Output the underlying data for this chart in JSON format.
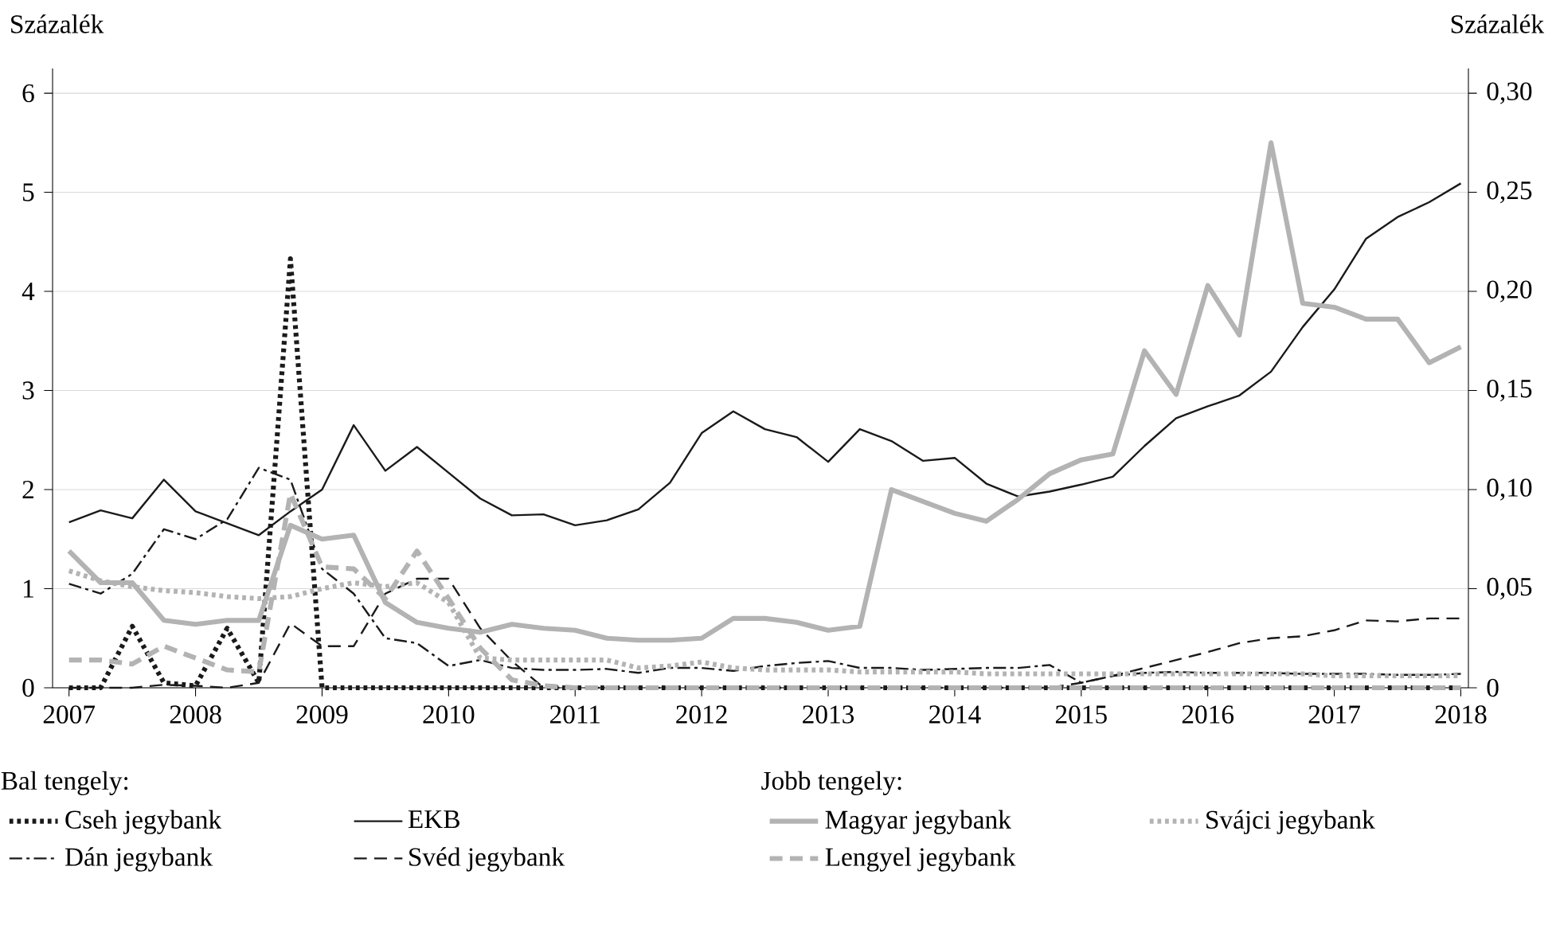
{
  "chart_data": {
    "type": "line",
    "ylabel": "Százalék",
    "y2label": "Százalék",
    "annotations": [
      "Bal tengely:",
      "Jobb tengely:"
    ],
    "x": [
      2007,
      2007.25,
      2007.5,
      2007.75,
      2008,
      2008.25,
      2008.5,
      2008.75,
      2009,
      2009.25,
      2009.5,
      2009.75,
      2010,
      2010.25,
      2010.5,
      2010.75,
      2011,
      2011.25,
      2011.5,
      2011.75,
      2012,
      2012.25,
      2012.5,
      2012.75,
      2013,
      2013.25,
      2013.5,
      2013.75,
      2014,
      2014.25,
      2014.5,
      2014.75,
      2015,
      2015.25,
      2015.5,
      2015.75,
      2016,
      2016.25,
      2016.5,
      2016.75,
      2017,
      2017.25,
      2017.5,
      2017.75,
      2018
    ],
    "xlim": [
      2006.87,
      2018.06
    ],
    "xticks": [
      2007,
      2008,
      2009,
      2010,
      2011,
      2012,
      2013,
      2014,
      2015,
      2016,
      2017,
      2018
    ],
    "ylim": [
      0,
      6.25
    ],
    "yticks": [
      0,
      1,
      2,
      3,
      4,
      5,
      6
    ],
    "y2lim": [
      0,
      0.3125
    ],
    "y2ticks": [
      0,
      {
        "value": 0.05,
        "label": "0,05"
      },
      {
        "value": 0.1,
        "label": "0,10"
      },
      {
        "value": 0.15,
        "label": "0,15"
      },
      {
        "value": 0.2,
        "label": "0,20"
      },
      {
        "value": 0.25,
        "label": "0,25"
      },
      {
        "value": 0.3,
        "label": "0,30"
      }
    ],
    "grid": "y",
    "legend": "bottom",
    "series": [
      {
        "name": "Cseh jegybank",
        "color": "#1a1a1a",
        "line_style": "dotted",
        "values": [
          0,
          0,
          0.62,
          0.05,
          0.02,
          0.6,
          0.05,
          4.33,
          0,
          0,
          0,
          0,
          0,
          0,
          0,
          0,
          0,
          0,
          0,
          0,
          0,
          0,
          0,
          0,
          0,
          0,
          0,
          0,
          0,
          0,
          0,
          0,
          0,
          0,
          0,
          0,
          0,
          0,
          0,
          0,
          0,
          0,
          0,
          0,
          0
        ]
      },
      {
        "name": "EKB",
        "color": "#1a1a1a",
        "line_style": "solid",
        "values": [
          1.67,
          1.79,
          1.71,
          2.1,
          1.78,
          1.66,
          1.54,
          1.78,
          2.0,
          2.65,
          2.19,
          2.43,
          2.17,
          1.91,
          1.74,
          1.75,
          1.64,
          1.69,
          1.8,
          2.07,
          2.57,
          2.79,
          2.61,
          2.53,
          2.28,
          2.61,
          2.49,
          2.29,
          2.32,
          2.06,
          1.93,
          1.98,
          2.05,
          2.13,
          2.44,
          2.72,
          2.84,
          2.95,
          3.19,
          3.64,
          4.02,
          4.53,
          4.75,
          4.9,
          5.09
        ]
      },
      {
        "name": "Dán jegybank",
        "color": "#1a1a1a",
        "line_style": "dashdot",
        "values": [
          1.05,
          0.95,
          1.15,
          1.6,
          1.5,
          1.7,
          2.22,
          2.1,
          1.2,
          0.95,
          0.5,
          0.45,
          0.22,
          0.28,
          0.2,
          0.18,
          0.18,
          0.19,
          0.15,
          0.2,
          0.2,
          0.17,
          0.22,
          0.25,
          0.27,
          0.2,
          0.2,
          0.18,
          0.19,
          0.2,
          0.2,
          0.23,
          0.05,
          0.12,
          0.15,
          0.16,
          0.15,
          0.15,
          0.15,
          0.14,
          0.14,
          0.14,
          0.13,
          0.13,
          0.14
        ]
      },
      {
        "name": "Svéd jegybank",
        "color": "#1a1a1a",
        "line_style": "dashed",
        "values": [
          0,
          0,
          0,
          0.03,
          0.02,
          0,
          0.05,
          0.65,
          0.42,
          0.42,
          0.95,
          1.1,
          1.1,
          0.6,
          0.27,
          0,
          0,
          0,
          0,
          0,
          0,
          0,
          0,
          0,
          0,
          0,
          0,
          0,
          0,
          0,
          0,
          0,
          0.05,
          0.12,
          0.2,
          0.28,
          0.36,
          0.45,
          0.5,
          0.52,
          0.58,
          0.68,
          0.67,
          0.7,
          0.7
        ]
      },
      {
        "name": "Magyar jegybank",
        "color": "#b3b3b3",
        "line_style": "solid",
        "axis": "y2",
        "values": [
          0.069,
          0.053,
          0.053,
          0.034,
          0.032,
          0.034,
          0.034,
          0.082,
          0.075,
          0.077,
          0.043,
          0.033,
          0.03,
          0.028,
          0.032,
          0.03,
          0.029,
          0.025,
          0.024,
          0.024,
          0.025,
          0.035,
          0.035,
          0.033,
          0.029,
          0.031,
          0.1,
          0.094,
          0.088,
          0.084,
          0.095,
          0.108,
          0.115,
          0.118,
          0.17,
          0.148,
          0.203,
          0.178,
          0.275,
          0.194,
          0.192,
          0.186,
          0.186,
          0.164,
          0.172
        ]
      },
      {
        "name": "Svájci jegybank",
        "color": "#b3b3b3",
        "line_style": "dotted",
        "axis": "y2",
        "values": [
          0.059,
          0.054,
          0.051,
          0.049,
          0.048,
          0.046,
          0.045,
          0.046,
          0.05,
          0.053,
          0.051,
          0.053,
          0.043,
          0.015,
          0.014,
          0.014,
          0.014,
          0.014,
          0.01,
          0.011,
          0.013,
          0.01,
          0.009,
          0.009,
          0.009,
          0.008,
          0.008,
          0.008,
          0.008,
          0.007,
          0.007,
          0.007,
          0.007,
          0.007,
          0.007,
          0.007,
          0.007,
          0.007,
          0.007,
          0.007,
          0.006,
          0.006,
          0.006,
          0.006,
          0.006
        ]
      },
      {
        "name": "Lengyel jegybank",
        "color": "#b3b3b3",
        "line_style": "dashed",
        "axis": "y2",
        "values": [
          0.014,
          0.014,
          0.012,
          0.021,
          0.015,
          0.009,
          0.008,
          0.098,
          0.061,
          0.06,
          0.045,
          0.069,
          0.045,
          0.02,
          0.004,
          0.001,
          0,
          0,
          0,
          0,
          0,
          0,
          0,
          0,
          0,
          0,
          0,
          0,
          0,
          0,
          0,
          0,
          0,
          0,
          0,
          0,
          0,
          0,
          0,
          0,
          0,
          0,
          0,
          0,
          0
        ]
      }
    ]
  }
}
